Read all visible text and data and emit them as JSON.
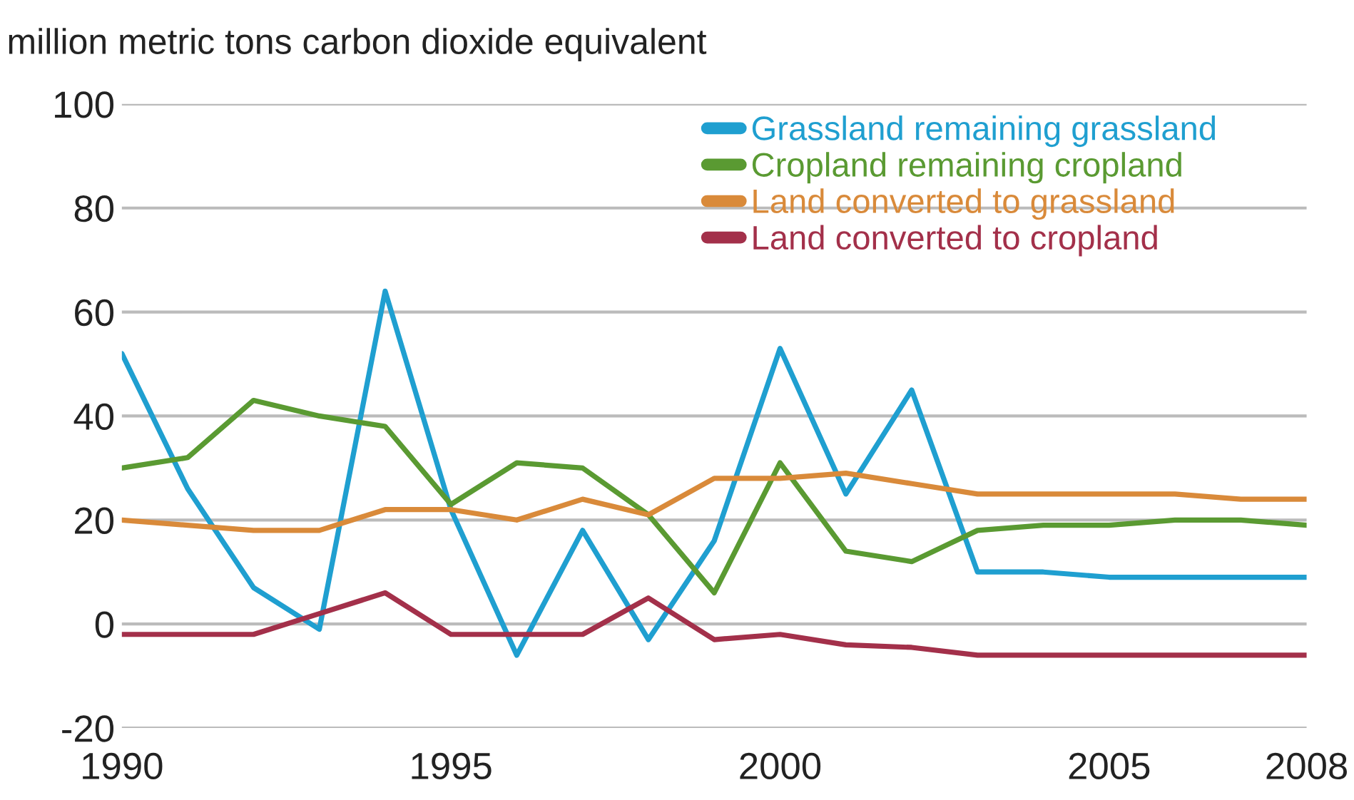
{
  "chart_data": {
    "type": "line",
    "ylabel": "million metric tons carbon dioxide equivalent",
    "x": [
      1990,
      1991,
      1992,
      1993,
      1994,
      1995,
      1996,
      1997,
      1998,
      1999,
      2000,
      2001,
      2002,
      2003,
      2004,
      2005,
      2006,
      2007,
      2008
    ],
    "series": [
      {
        "name": "Grassland remaining grassland",
        "color": "#1f9fd0",
        "values": [
          52,
          26,
          7,
          -1,
          64,
          22,
          -6,
          18,
          -3,
          16,
          53,
          25,
          45,
          10,
          10,
          9,
          9,
          9,
          9
        ]
      },
      {
        "name": "Cropland remaining cropland",
        "color": "#5a9a32",
        "values": [
          30,
          32,
          43,
          40,
          38,
          23,
          31,
          30,
          21,
          6,
          31,
          14,
          12,
          18,
          19,
          19,
          20,
          20,
          19
        ]
      },
      {
        "name": "Land converted to grassland",
        "color": "#d98a3a",
        "values": [
          20,
          19,
          18,
          18,
          22,
          22,
          20,
          24,
          21,
          28,
          28,
          29,
          27,
          25,
          25,
          25,
          25,
          24,
          24
        ]
      },
      {
        "name": "Land converted to cropland",
        "color": "#a3304a",
        "values": [
          -2,
          -2,
          -2,
          2,
          6,
          -2,
          -2,
          -2,
          5,
          -3,
          -2,
          -4,
          -4.5,
          -6,
          -6,
          -6,
          -6,
          -6,
          -6
        ]
      }
    ],
    "xlim": [
      1990,
      2008
    ],
    "xticks": [
      1990,
      1995,
      2000,
      2005,
      2008
    ],
    "ylim": [
      -20,
      100
    ],
    "yticks": [
      -20,
      0,
      20,
      40,
      60,
      80,
      100
    ],
    "grid": "y",
    "legend": "top right",
    "marker": "none",
    "line_style": "solid"
  }
}
